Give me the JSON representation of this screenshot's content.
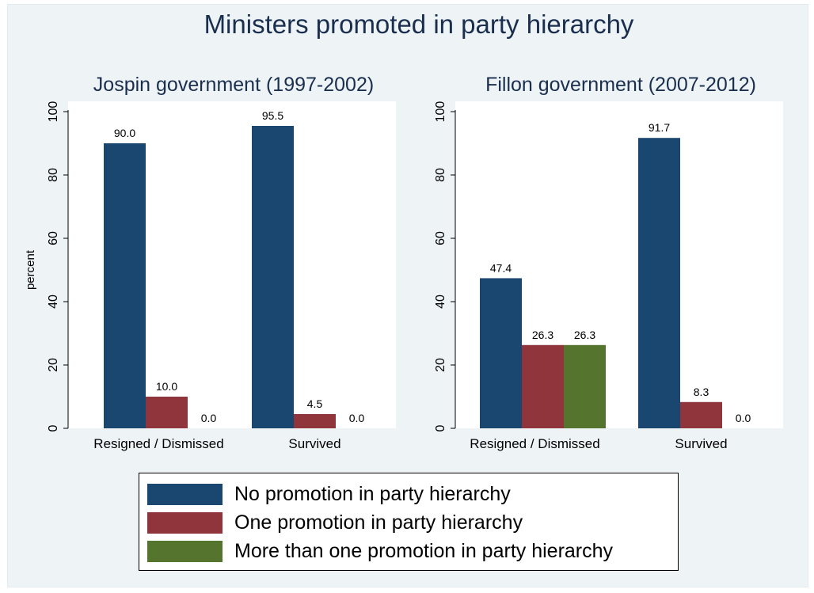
{
  "title": "Ministers promoted in party hierarchy",
  "colors": {
    "series": [
      "#1a476f",
      "#90353b",
      "#55752f"
    ],
    "background": "#eef3f6",
    "plot": "#ffffff"
  },
  "chart_data": [
    {
      "type": "bar",
      "title": "Jospin government (1997-2002)",
      "ylabel": "percent",
      "ylim": [
        0,
        100
      ],
      "yticks": [
        "0",
        "20",
        "40",
        "60",
        "80",
        "100"
      ],
      "categories": [
        "Resigned / Dismissed",
        "Survived"
      ],
      "series": [
        {
          "name": "No promotion in party hierarchy",
          "values": [
            90.0,
            95.5
          ],
          "labels": [
            "90.0",
            "95.5"
          ]
        },
        {
          "name": "One promotion in party hierarchy",
          "values": [
            10.0,
            4.5
          ],
          "labels": [
            "10.0",
            "4.5"
          ]
        },
        {
          "name": "More than one promotion in party hierarchy",
          "values": [
            0.0,
            0.0
          ],
          "labels": [
            "0.0",
            "0.0"
          ]
        }
      ]
    },
    {
      "type": "bar",
      "title": "Fillon government (2007-2012)",
      "ylabel": "",
      "ylim": [
        0,
        100
      ],
      "yticks": [
        "0",
        "20",
        "40",
        "60",
        "80",
        "100"
      ],
      "categories": [
        "Resigned / Dismissed",
        "Survived"
      ],
      "series": [
        {
          "name": "No promotion in party hierarchy",
          "values": [
            47.4,
            91.7
          ],
          "labels": [
            "47.4",
            "91.7"
          ]
        },
        {
          "name": "One promotion in party hierarchy",
          "values": [
            26.3,
            8.3
          ],
          "labels": [
            "26.3",
            "8.3"
          ]
        },
        {
          "name": "More than one promotion in party hierarchy",
          "values": [
            26.3,
            0.0
          ],
          "labels": [
            "26.3",
            "0.0"
          ]
        }
      ]
    }
  ],
  "legend": {
    "position": "bottom-center",
    "items": [
      "No promotion in party hierarchy",
      "One promotion in party hierarchy",
      "More than one promotion in party hierarchy"
    ]
  }
}
